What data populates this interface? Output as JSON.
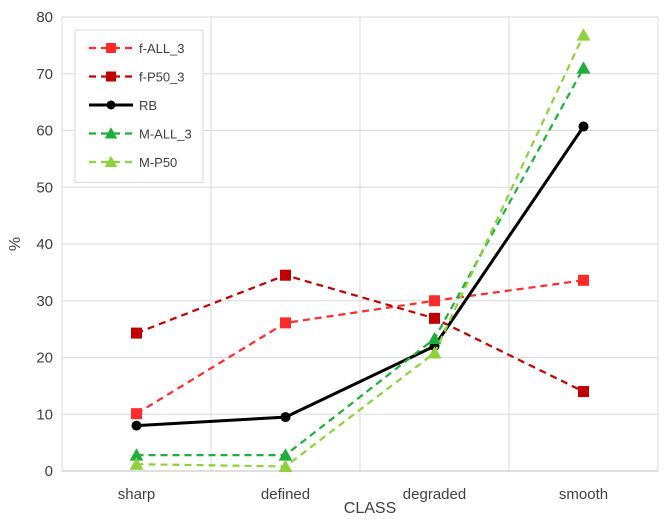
{
  "chart_data": {
    "type": "line",
    "xlabel": "CLASS",
    "ylabel": "%",
    "categories": [
      "sharp",
      "defined",
      "degraded",
      "smooth"
    ],
    "ylim": [
      0,
      80
    ],
    "yticks": [
      0,
      10,
      20,
      30,
      40,
      50,
      60,
      70,
      80
    ],
    "grid": true,
    "legend_position": "top-left",
    "series": [
      {
        "name": "f-ALL_3",
        "values": [
          10.1,
          26.1,
          30.0,
          33.6
        ],
        "color": "#ff2a2a",
        "dash": "dashed",
        "marker": "square"
      },
      {
        "name": "f-P50_3",
        "values": [
          24.3,
          34.5,
          26.9,
          14.0
        ],
        "color": "#c00000",
        "dash": "dashed",
        "marker": "square"
      },
      {
        "name": "RB",
        "values": [
          8.0,
          9.5,
          22.0,
          60.7
        ],
        "color": "#000000",
        "dash": "solid",
        "marker": "circle"
      },
      {
        "name": "M-ALL_3",
        "values": [
          2.8,
          2.8,
          23.3,
          71.0
        ],
        "color": "#1fae3a",
        "dash": "dashed",
        "marker": "triangle"
      },
      {
        "name": "M-P50",
        "values": [
          1.2,
          0.8,
          20.8,
          76.8
        ],
        "color": "#8fd13c",
        "dash": "dashed",
        "marker": "triangle"
      }
    ]
  }
}
